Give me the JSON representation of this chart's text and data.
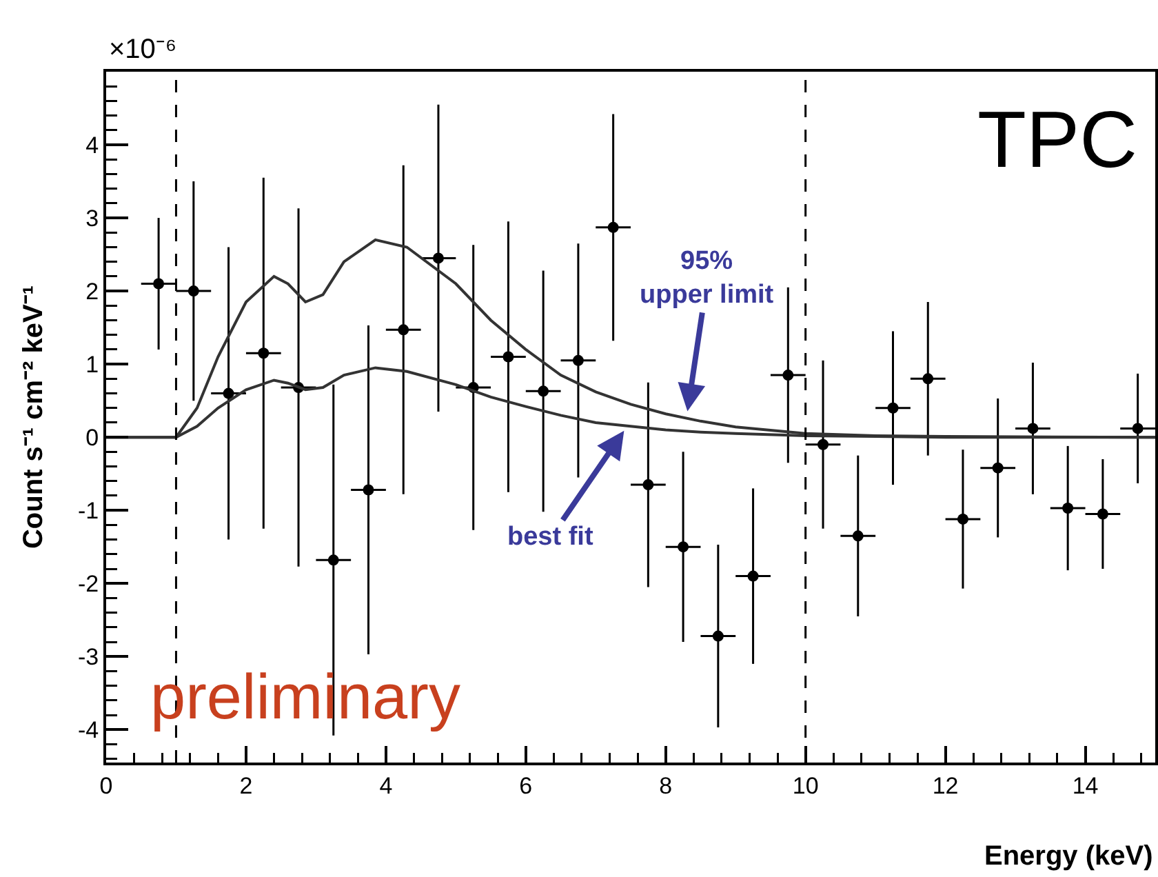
{
  "chart_data": {
    "type": "scatter",
    "xlabel": "Energy (keV)",
    "ylabel": "Count s⁻¹ cm⁻² keV⁻¹",
    "x": [
      0.75,
      1.25,
      1.75,
      2.25,
      2.75,
      3.25,
      3.75,
      4.25,
      4.75,
      5.25,
      5.75,
      6.25,
      6.75,
      7.25,
      7.75,
      8.25,
      8.75,
      9.25,
      9.75,
      10.25,
      10.75,
      11.25,
      11.75,
      12.25,
      12.75,
      13.25,
      13.75,
      14.25,
      14.75
    ],
    "series": [
      {
        "color": "#000000",
        "marker": "circle",
        "values": [
          2.1,
          2.0,
          0.6,
          1.15,
          0.68,
          -1.68,
          -0.72,
          1.47,
          2.45,
          0.68,
          1.1,
          0.63,
          1.05,
          2.87,
          -0.65,
          -1.5,
          -2.72,
          -1.9,
          0.85,
          -0.1,
          -1.35,
          0.4,
          0.8,
          -1.12,
          -0.42,
          0.12,
          -0.97,
          -1.05,
          0.12
        ],
        "errors": [
          0.9,
          1.5,
          2.0,
          2.4,
          2.45,
          2.4,
          2.25,
          2.25,
          2.1,
          1.95,
          1.85,
          1.65,
          1.6,
          1.55,
          1.4,
          1.3,
          1.25,
          1.2,
          1.2,
          1.15,
          1.1,
          1.05,
          1.05,
          0.95,
          0.95,
          0.9,
          0.85,
          0.75,
          0.75
        ],
        "xerrors": [
          0.25,
          0.25,
          0.25,
          0.25,
          0.25,
          0.25,
          0.25,
          0.25,
          0.25,
          0.25,
          0.25,
          0.25,
          0.25,
          0.25,
          0.25,
          0.25,
          0.25,
          0.25,
          0.25,
          0.25,
          0.25,
          0.25,
          0.25,
          0.25,
          0.25,
          0.25,
          0.25,
          0.25,
          0.25
        ]
      },
      {
        "type": "line",
        "color": "#333333",
        "line_style": "solid",
        "marker": "none",
        "x": [
          0,
          1,
          1.3,
          1.6,
          2.0,
          2.4,
          2.6,
          2.85,
          3.1,
          3.4,
          3.85,
          4.3,
          5,
          5.5,
          6,
          6.5,
          7,
          7.5,
          8,
          8.5,
          9,
          10,
          11,
          12,
          15
        ],
        "values": [
          0,
          0,
          0.4,
          1.1,
          1.85,
          2.2,
          2.1,
          1.85,
          1.95,
          2.4,
          2.7,
          2.6,
          2.1,
          1.6,
          1.2,
          0.85,
          0.62,
          0.45,
          0.32,
          0.22,
          0.14,
          0.05,
          0.02,
          0.01,
          0
        ]
      },
      {
        "type": "line",
        "color": "#333333",
        "line_style": "solid",
        "marker": "none",
        "x": [
          0,
          1,
          1.3,
          1.6,
          2.0,
          2.4,
          2.6,
          2.85,
          3.1,
          3.4,
          3.85,
          4.3,
          5,
          5.5,
          6,
          6.5,
          7,
          7.5,
          8,
          8.5,
          9,
          10,
          11,
          12,
          15
        ],
        "values": [
          0,
          0,
          0.15,
          0.4,
          0.65,
          0.78,
          0.74,
          0.65,
          0.68,
          0.85,
          0.95,
          0.9,
          0.72,
          0.55,
          0.42,
          0.3,
          0.2,
          0.15,
          0.1,
          0.07,
          0.05,
          0.02,
          0.01,
          0,
          0
        ]
      }
    ],
    "xlim": [
      0,
      15
    ],
    "xticks": [
      0,
      2,
      4,
      6,
      8,
      10,
      12,
      14
    ],
    "ylim": [
      -4.45,
      5
    ],
    "yticks": [
      -4,
      -3,
      -2,
      -1,
      0,
      1,
      2,
      3,
      4
    ],
    "ref_lines": [
      {
        "axis": "x",
        "value": 1,
        "line_style": "dashed",
        "color": "#000000"
      },
      {
        "axis": "x",
        "value": 10,
        "line_style": "dashed",
        "color": "#000000"
      }
    ],
    "annotations": [
      "×10⁻⁶",
      "TPC",
      "preliminary",
      {
        "text": "95%\nupper limit",
        "x": 8.3,
        "y": 0.28
      },
      {
        "text": "best fit",
        "x": 7.45,
        "y": 0.15
      }
    ],
    "grid": false
  }
}
